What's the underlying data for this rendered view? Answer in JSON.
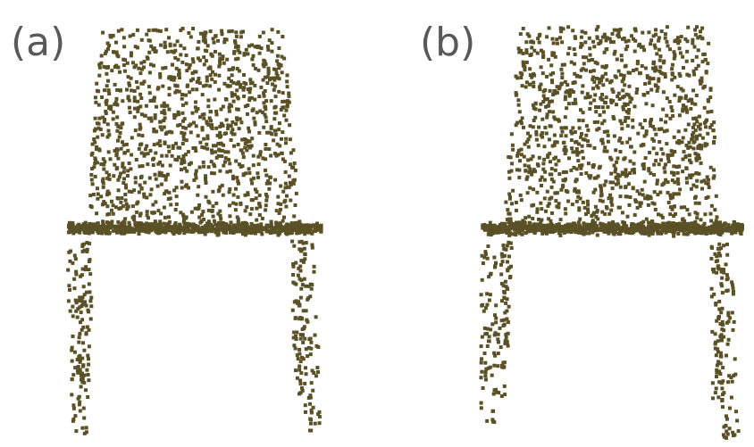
{
  "figure": {
    "background": "#ffffff",
    "point_color": "#5a5126",
    "label_color": "#595959",
    "panels": [
      {
        "id": "a",
        "label": "(a)",
        "content": "chair-point-cloud"
      },
      {
        "id": "b",
        "label": "(b)",
        "content": "chair-point-cloud"
      }
    ]
  }
}
